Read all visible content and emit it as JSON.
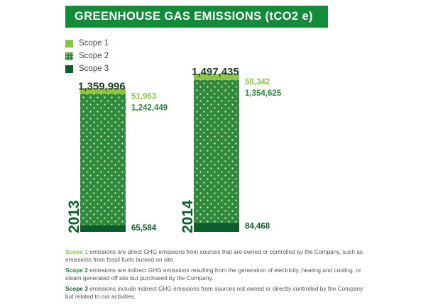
{
  "title": "GREENHOUSE GAS EMISSIONS (tCO2 e)",
  "colors": {
    "scope1": "#8dc63f",
    "scope2": "#2f8a3c",
    "scope3": "#0b5d2c",
    "banner": "#138b3b"
  },
  "legend": [
    {
      "label": "Scope 1",
      "color": "#8dc63f",
      "icon": "solid-square"
    },
    {
      "label": "Scope 2",
      "color": "#2f8a3c",
      "icon": "dotted-square"
    },
    {
      "label": "Scope 3",
      "color": "#0b5d2c",
      "icon": "solid-square"
    }
  ],
  "chart_data": {
    "type": "bar",
    "stacked": true,
    "title": "GREENHOUSE GAS EMISSIONS (tCO2 e)",
    "categories": [
      "2013",
      "2014"
    ],
    "totals": [
      "1,359,996",
      "1,497,435"
    ],
    "series": [
      {
        "name": "Scope 3",
        "values": [
          65584,
          84468
        ],
        "labels": [
          "65,584",
          "84,468"
        ]
      },
      {
        "name": "Scope 2",
        "values": [
          1242449,
          1354625
        ],
        "labels": [
          "1,242,449",
          "1,354,625"
        ]
      },
      {
        "name": "Scope 1",
        "values": [
          51963,
          58342
        ],
        "labels": [
          "51,963",
          "58,342"
        ]
      }
    ],
    "ylim": [
      0,
      1497435
    ]
  },
  "notes": [
    {
      "lead": "Scope 1",
      "text": " emissions are direct GHG emissions from sources that are owned or controlled by the Company, such as emissions from fossil fuels burned on site."
    },
    {
      "lead": "Scope 2",
      "text": " emissions are indirect GHG emissions resulting from the generation of electricity, heating and cooling, or steam generated off site but purchased by the Company."
    },
    {
      "lead": "Scope 3",
      "text": " emissions include indirect GHG emissions from sources not owned or directly controlled by the Company but related to our activities."
    }
  ]
}
